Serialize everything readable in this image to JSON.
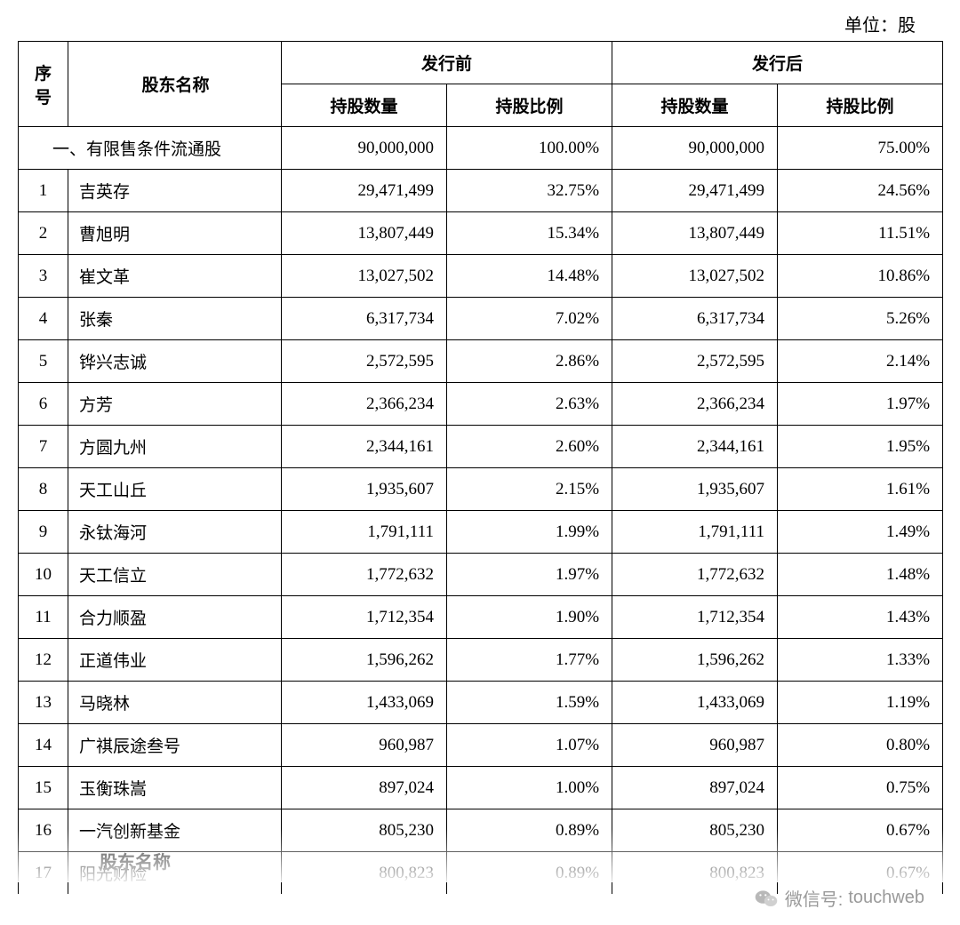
{
  "unit_label": "单位：股",
  "table": {
    "headers": {
      "seq": "序号",
      "name": "股东名称",
      "before": "发行前",
      "after": "发行后",
      "qty": "持股数量",
      "pct": "持股比例"
    },
    "section_label": "一、有限售条件流通股",
    "section_values": {
      "before_qty": "90,000,000",
      "before_pct": "100.00%",
      "after_qty": "90,000,000",
      "after_pct": "75.00%"
    },
    "rows": [
      {
        "seq": "1",
        "name": "吉英存",
        "bq": "29,471,499",
        "bp": "32.75%",
        "aq": "29,471,499",
        "ap": "24.56%"
      },
      {
        "seq": "2",
        "name": "曹旭明",
        "bq": "13,807,449",
        "bp": "15.34%",
        "aq": "13,807,449",
        "ap": "11.51%"
      },
      {
        "seq": "3",
        "name": "崔文革",
        "bq": "13,027,502",
        "bp": "14.48%",
        "aq": "13,027,502",
        "ap": "10.86%"
      },
      {
        "seq": "4",
        "name": "张秦",
        "bq": "6,317,734",
        "bp": "7.02%",
        "aq": "6,317,734",
        "ap": "5.26%"
      },
      {
        "seq": "5",
        "name": "铧兴志诚",
        "bq": "2,572,595",
        "bp": "2.86%",
        "aq": "2,572,595",
        "ap": "2.14%"
      },
      {
        "seq": "6",
        "name": "方芳",
        "bq": "2,366,234",
        "bp": "2.63%",
        "aq": "2,366,234",
        "ap": "1.97%"
      },
      {
        "seq": "7",
        "name": "方圆九州",
        "bq": "2,344,161",
        "bp": "2.60%",
        "aq": "2,344,161",
        "ap": "1.95%"
      },
      {
        "seq": "8",
        "name": "天工山丘",
        "bq": "1,935,607",
        "bp": "2.15%",
        "aq": "1,935,607",
        "ap": "1.61%"
      },
      {
        "seq": "9",
        "name": "永钛海河",
        "bq": "1,791,111",
        "bp": "1.99%",
        "aq": "1,791,111",
        "ap": "1.49%"
      },
      {
        "seq": "10",
        "name": "天工信立",
        "bq": "1,772,632",
        "bp": "1.97%",
        "aq": "1,772,632",
        "ap": "1.48%"
      },
      {
        "seq": "11",
        "name": "合力顺盈",
        "bq": "1,712,354",
        "bp": "1.90%",
        "aq": "1,712,354",
        "ap": "1.43%"
      },
      {
        "seq": "12",
        "name": "正道伟业",
        "bq": "1,596,262",
        "bp": "1.77%",
        "aq": "1,596,262",
        "ap": "1.33%"
      },
      {
        "seq": "13",
        "name": "马晓林",
        "bq": "1,433,069",
        "bp": "1.59%",
        "aq": "1,433,069",
        "ap": "1.19%"
      },
      {
        "seq": "14",
        "name": "广祺辰途叁号",
        "bq": "960,987",
        "bp": "1.07%",
        "aq": "960,987",
        "ap": "0.80%"
      },
      {
        "seq": "15",
        "name": "玉衡珠嵩",
        "bq": "897,024",
        "bp": "1.00%",
        "aq": "897,024",
        "ap": "0.75%"
      },
      {
        "seq": "16",
        "name": "一汽创新基金",
        "bq": "805,230",
        "bp": "0.89%",
        "aq": "805,230",
        "ap": "0.67%"
      },
      {
        "seq": "17",
        "name": "阳光财险",
        "bq": "800,823",
        "bp": "0.89%",
        "aq": "800,823",
        "ap": "0.67%"
      }
    ]
  },
  "stray_text": "股东名称",
  "watermark": {
    "label": "微信号:",
    "id": "touchweb"
  },
  "style": {
    "border_color": "#000000",
    "text_color": "#000000",
    "watermark_color": "#9a9a9a",
    "background": "#ffffff",
    "font_size_body": 19,
    "font_size_unit": 20
  }
}
